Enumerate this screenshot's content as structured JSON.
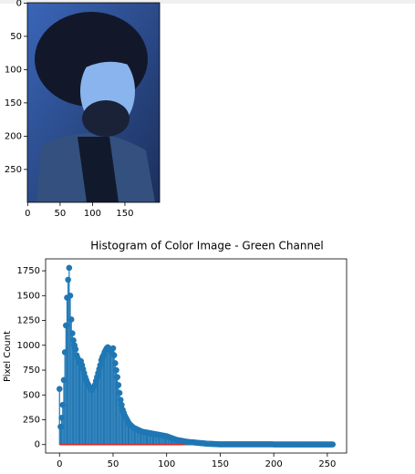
{
  "chart_data": [
    {
      "type": "image",
      "xlim": [
        -0.5,
        203.5
      ],
      "ylim": [
        299.5,
        -0.5
      ],
      "xticks": [
        0,
        50,
        100,
        150
      ],
      "yticks": [
        0,
        50,
        100,
        150,
        200,
        250
      ]
    },
    {
      "type": "stem",
      "title": "Histogram of Color Image - Green Channel",
      "y_label": "Pixel Count",
      "color": "#1f77b4",
      "baseline_color": "#d62728",
      "xlim": [
        -13,
        268
      ],
      "ylim": [
        -85,
        1870
      ],
      "xticks": [
        0,
        50,
        100,
        150,
        200,
        250
      ],
      "yticks": [
        0,
        250,
        500,
        750,
        1000,
        1250,
        1500,
        1750
      ],
      "values": [
        560,
        180,
        270,
        400,
        650,
        930,
        1200,
        1480,
        1660,
        1780,
        1500,
        1260,
        1120,
        1050,
        1000,
        960,
        900,
        870,
        850,
        820,
        840,
        800,
        760,
        720,
        680,
        650,
        620,
        600,
        580,
        560,
        550,
        560,
        580,
        600,
        640,
        680,
        720,
        760,
        800,
        850,
        880,
        900,
        930,
        950,
        970,
        980,
        970,
        960,
        940,
        920,
        970,
        900,
        820,
        750,
        680,
        600,
        520,
        450,
        400,
        350,
        320,
        290,
        270,
        250,
        230,
        210,
        200,
        190,
        180,
        170,
        165,
        160,
        155,
        150,
        145,
        140,
        135,
        130,
        128,
        126,
        124,
        122,
        120,
        118,
        116,
        114,
        112,
        110,
        108,
        106,
        104,
        102,
        100,
        98,
        96,
        94,
        92,
        90,
        88,
        86,
        84,
        80,
        76,
        72,
        68,
        64,
        60,
        56,
        52,
        48,
        46,
        44,
        42,
        40,
        38,
        36,
        34,
        32,
        30,
        28,
        27,
        26,
        25,
        24,
        23,
        22,
        21,
        20,
        19,
        18,
        17,
        16,
        15,
        14,
        13,
        12,
        11,
        10,
        9,
        8,
        8,
        7,
        7,
        6,
        6,
        5,
        5,
        4,
        4,
        3,
        3,
        3,
        3,
        3,
        3,
        3,
        3,
        3,
        3,
        3,
        3,
        3,
        3,
        3,
        3,
        3,
        3,
        3,
        3,
        3,
        3,
        3,
        3,
        3,
        3,
        3,
        3,
        3,
        3,
        3,
        3,
        3,
        3,
        3,
        3,
        3,
        3,
        3,
        3,
        3,
        3,
        3,
        3,
        3,
        3,
        3,
        3,
        3,
        3,
        3,
        2,
        2,
        2,
        2,
        2,
        2,
        2,
        2,
        2,
        2,
        2,
        2,
        2,
        2,
        2,
        2,
        2,
        2,
        2,
        2,
        2,
        2,
        2,
        2,
        2,
        2,
        2,
        2,
        2,
        2,
        2,
        2,
        2,
        2,
        2,
        2,
        2,
        2,
        2,
        2,
        2,
        2,
        2,
        2,
        2,
        2,
        2,
        2,
        2,
        2,
        2,
        2,
        2,
        2,
        2,
        2
      ]
    }
  ]
}
